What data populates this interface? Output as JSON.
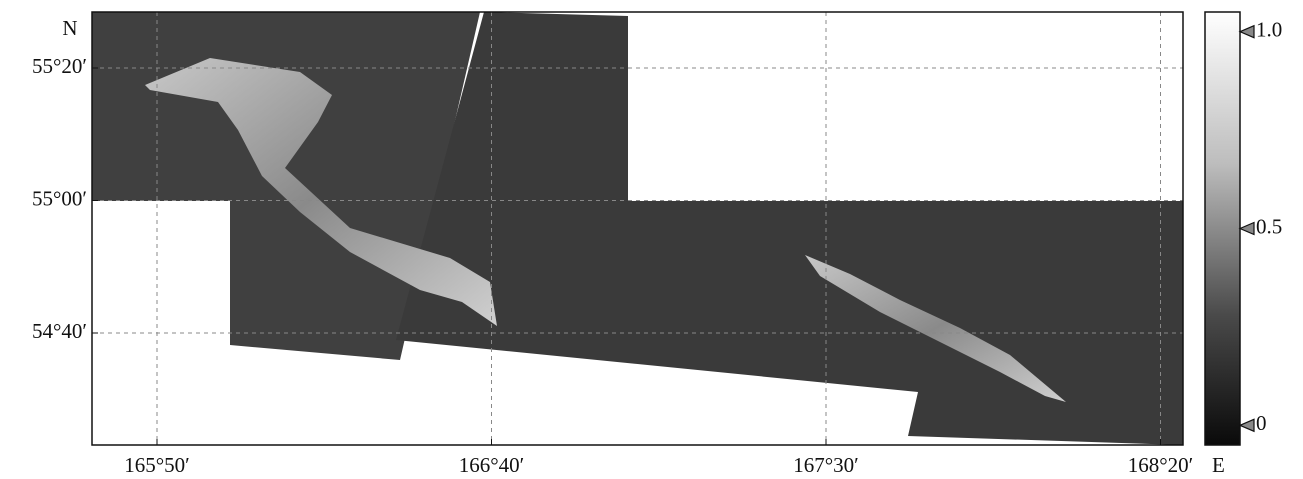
{
  "map": {
    "xticks": [
      "165°50′",
      "166°40′",
      "167°30′",
      "168°20′"
    ],
    "yticks": [
      "55°20′",
      "55°00′",
      "54°40′"
    ],
    "x_axis_label": "E",
    "y_axis_label": "N"
  },
  "colorbar": {
    "lim": [
      -0.05,
      1.05
    ],
    "ticks": [
      {
        "value": 1.0,
        "label": "1.0"
      },
      {
        "value": 0.5,
        "label": "0.5"
      },
      {
        "value": 0,
        "label": "0"
      }
    ]
  }
}
